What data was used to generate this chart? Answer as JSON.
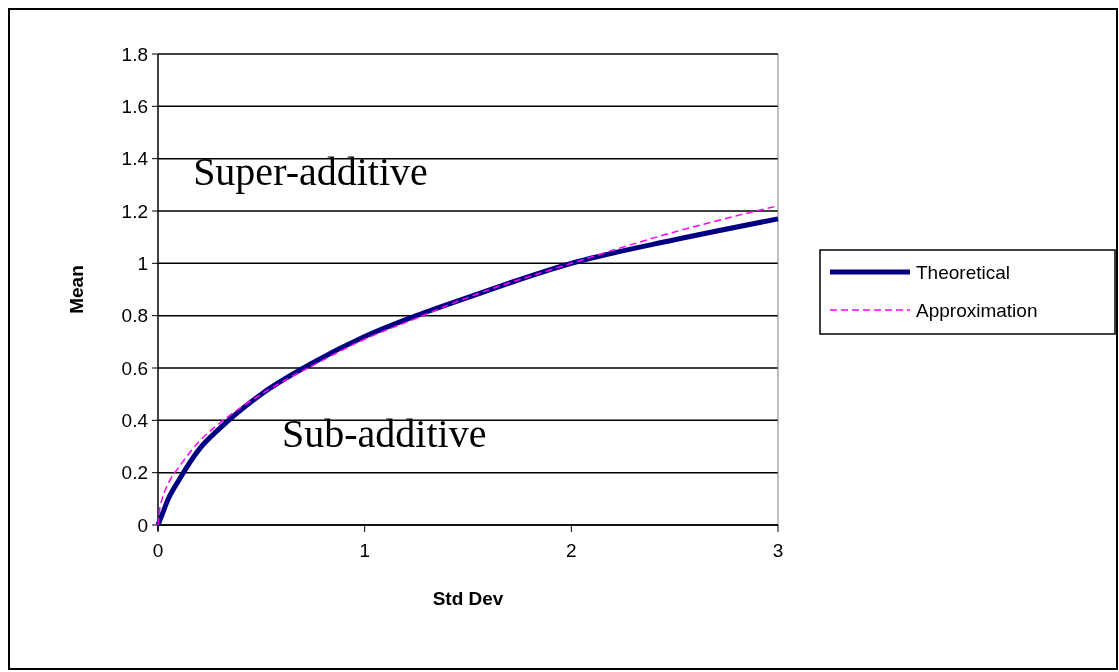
{
  "chart_data": {
    "type": "line",
    "xlabel": "Std Dev",
    "ylabel": "Mean",
    "xlim": [
      0,
      3
    ],
    "xticks": [
      0,
      1,
      2,
      3
    ],
    "ylim": [
      0,
      1.8
    ],
    "yticks": [
      0,
      0.2,
      0.4,
      0.6,
      0.8,
      1,
      1.2,
      1.4,
      1.6,
      1.8
    ],
    "grid": "y",
    "legend": "right",
    "annotations": [
      "Super-additive",
      "Sub-additive"
    ],
    "series": [
      {
        "name": "Theoretical",
        "color": "#000080",
        "line_style": "solid",
        "x": [
          0,
          0.02,
          0.05,
          0.1,
          0.2,
          0.3,
          0.5,
          0.75,
          1,
          1.25,
          1.5,
          2,
          2.5,
          3
        ],
        "values": [
          0,
          0.04,
          0.1,
          0.17,
          0.29,
          0.37,
          0.5,
          0.62,
          0.72,
          0.8,
          0.87,
          1.0,
          1.09,
          1.17
        ]
      },
      {
        "name": "Approximation",
        "color": "#ff00ff",
        "line_style": "dashed",
        "x": [
          0,
          0.01,
          0.02,
          0.05,
          0.1,
          0.2,
          0.3,
          0.5,
          0.75,
          1,
          1.25,
          1.5,
          2,
          2.5,
          3
        ],
        "values": [
          0,
          0.07,
          0.1,
          0.16,
          0.22,
          0.32,
          0.39,
          0.5,
          0.61,
          0.71,
          0.79,
          0.87,
          1.0,
          1.12,
          1.22
        ]
      }
    ]
  }
}
